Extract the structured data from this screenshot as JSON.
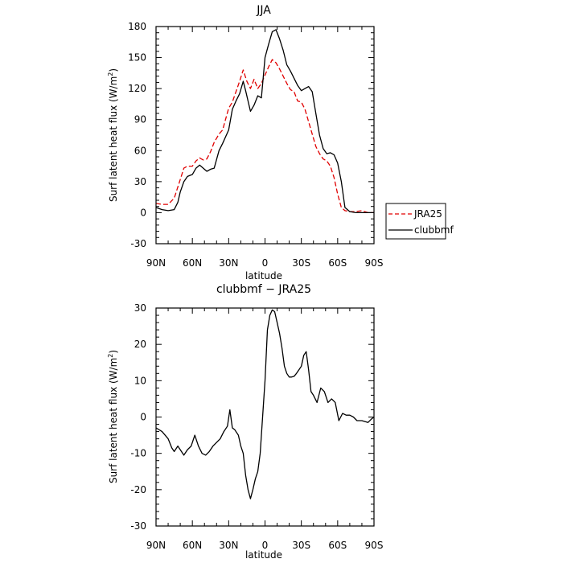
{
  "chart_data": [
    {
      "type": "line",
      "title": "JJA",
      "xlabel": "latitude",
      "ylabel": "Surf latent heat flux (W/m²)",
      "ylabel_base": "Surf latent heat flux (W/m",
      "ylabel_sup": "2",
      "ylabel_tail": ")",
      "xlim": [
        90,
        -90
      ],
      "ylim": [
        -30,
        180
      ],
      "xticks": [
        {
          "value": 90,
          "label": "90N"
        },
        {
          "value": 60,
          "label": "60N"
        },
        {
          "value": 30,
          "label": "30N"
        },
        {
          "value": 0,
          "label": "0"
        },
        {
          "value": -30,
          "label": "30S"
        },
        {
          "value": -60,
          "label": "60S"
        },
        {
          "value": -90,
          "label": "90S"
        }
      ],
      "yticks": [
        -30,
        0,
        30,
        60,
        90,
        120,
        150,
        180
      ],
      "grid": false,
      "legend": "right",
      "series": [
        {
          "name": "JRA25",
          "color": "#e00000",
          "dash": true,
          "x": [
            90,
            85,
            80,
            75,
            70,
            67,
            64,
            60,
            57,
            54,
            51,
            48,
            45,
            42,
            38,
            35,
            30,
            27,
            24,
            21,
            18,
            15,
            12,
            9,
            6,
            3,
            0,
            -3,
            -6,
            -9,
            -12,
            -15,
            -18,
            -21,
            -24,
            -27,
            -30,
            -33,
            -36,
            -39,
            -42,
            -45,
            -48,
            -51,
            -54,
            -57,
            -60,
            -63,
            -66,
            -70,
            -75,
            -80,
            -85,
            -90
          ],
          "y": [
            9,
            8,
            8,
            14,
            32,
            43,
            45,
            45,
            50,
            53,
            51,
            52,
            59,
            68,
            76,
            80,
            101,
            107,
            117,
            127,
            138,
            127,
            120,
            129,
            120,
            125,
            133,
            141,
            148,
            145,
            139,
            132,
            125,
            119,
            117,
            108,
            107,
            100,
            88,
            76,
            64,
            57,
            52,
            50,
            45,
            34,
            18,
            5,
            2,
            1,
            1,
            2,
            0,
            0
          ]
        },
        {
          "name": "clubbmf",
          "color": "#000000",
          "dash": false,
          "x": [
            90,
            85,
            80,
            75,
            72,
            70,
            67,
            64,
            60,
            57,
            54,
            51,
            48,
            45,
            42,
            38,
            35,
            30,
            27,
            24,
            21,
            18,
            16,
            14,
            12,
            9,
            6,
            3,
            0,
            -3,
            -6,
            -9,
            -12,
            -15,
            -18,
            -21,
            -24,
            -27,
            -30,
            -33,
            -36,
            -39,
            -42,
            -45,
            -48,
            -51,
            -54,
            -57,
            -60,
            -63,
            -66,
            -70,
            -75,
            -80,
            -85,
            -90
          ],
          "y": [
            5,
            3,
            2,
            3,
            10,
            20,
            30,
            35,
            37,
            43,
            46,
            43,
            40,
            42,
            43,
            60,
            67,
            80,
            100,
            108,
            115,
            127,
            118,
            108,
            98,
            104,
            113,
            111,
            150,
            163,
            175,
            177,
            168,
            157,
            143,
            137,
            130,
            123,
            118,
            120,
            122,
            117,
            96,
            75,
            62,
            57,
            58,
            56,
            48,
            30,
            5,
            1,
            0,
            0,
            0,
            0
          ]
        }
      ]
    },
    {
      "type": "line",
      "title": "clubbmf − JRA25",
      "xlabel": "latitude",
      "ylabel": "Surf latent heat flux (W/m²)",
      "ylabel_base": "Surf latent heat flux (W/m",
      "ylabel_sup": "2",
      "ylabel_tail": ")",
      "xlim": [
        90,
        -90
      ],
      "ylim": [
        -30,
        30
      ],
      "xticks": [
        {
          "value": 90,
          "label": "90N"
        },
        {
          "value": 60,
          "label": "60N"
        },
        {
          "value": 30,
          "label": "30N"
        },
        {
          "value": 0,
          "label": "0"
        },
        {
          "value": -30,
          "label": "30S"
        },
        {
          "value": -60,
          "label": "60S"
        },
        {
          "value": -90,
          "label": "90S"
        }
      ],
      "yticks": [
        -30,
        -20,
        -10,
        0,
        10,
        20,
        30
      ],
      "grid": false,
      "series": [
        {
          "color": "#000000",
          "dash": false,
          "x": [
            90,
            85,
            80,
            77,
            75,
            72,
            70,
            67,
            64,
            61,
            58,
            55,
            52,
            49,
            46,
            43,
            40,
            37,
            34,
            31,
            29,
            27,
            25,
            22,
            20,
            18,
            16,
            14,
            12,
            10,
            8,
            6,
            4,
            2,
            0,
            -2,
            -4,
            -6,
            -8,
            -10,
            -12,
            -14,
            -16,
            -18,
            -20,
            -22,
            -24,
            -26,
            -28,
            -30,
            -32,
            -34,
            -36,
            -38,
            -40,
            -43,
            -46,
            -49,
            -52,
            -55,
            -58,
            -61,
            -64,
            -67,
            -70,
            -73,
            -76,
            -80,
            -85,
            -88,
            -90
          ],
          "y": [
            -3,
            -4,
            -6,
            -8.5,
            -9.5,
            -8,
            -9,
            -10.5,
            -9,
            -8,
            -5,
            -8,
            -10,
            -10.5,
            -9.5,
            -8,
            -7,
            -6,
            -4,
            -2.5,
            2,
            -3,
            -3.5,
            -5,
            -8,
            -10,
            -16,
            -20,
            -22.5,
            -20,
            -17,
            -15,
            -10,
            0,
            10,
            24,
            28,
            29.5,
            29,
            26,
            23,
            19,
            14,
            12,
            11,
            11,
            11.2,
            12,
            13,
            14,
            17,
            18,
            13,
            7,
            6,
            4,
            8,
            7,
            4,
            5,
            4,
            -1,
            1,
            0.5,
            0.5,
            0,
            -1,
            -1,
            -1.5,
            -0.5,
            0
          ]
        }
      ]
    }
  ]
}
